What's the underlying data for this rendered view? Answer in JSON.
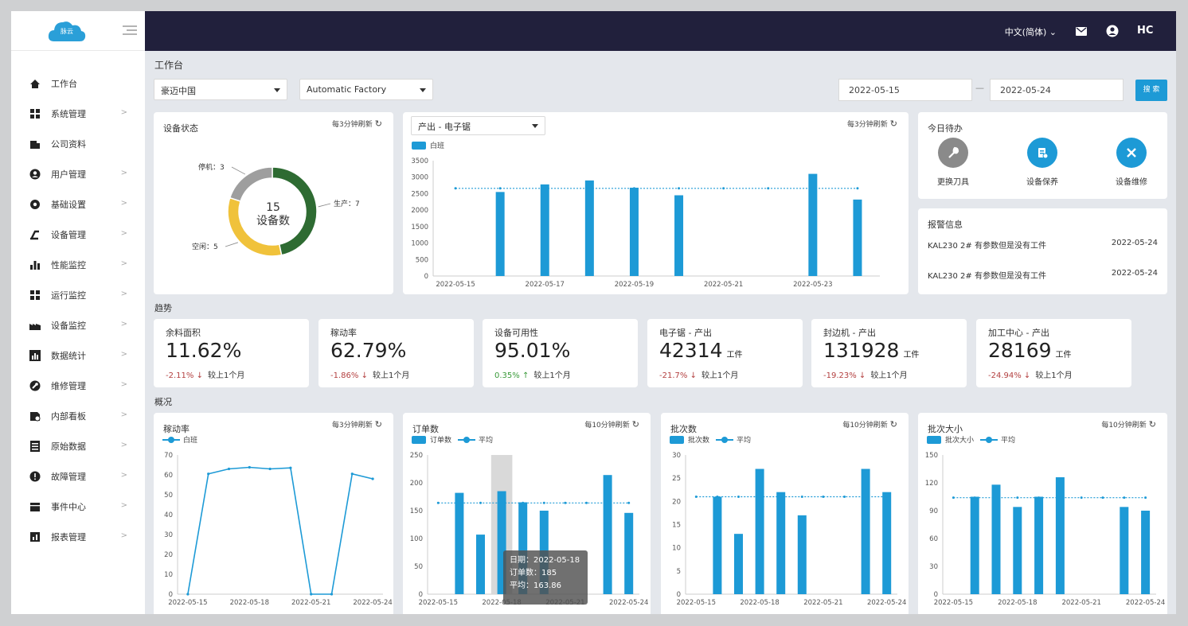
{
  "app": {
    "logo_text": "脉云"
  },
  "colors": {
    "accent": "#1d9ad6",
    "topbar": "#21203c",
    "production": "#2e6b32",
    "idle": "#f0c23b",
    "stopped": "#9e9e9e",
    "down": "#b34040",
    "up": "#3a9a3a"
  },
  "topbar": {
    "language": "中文(简体)",
    "icons": [
      "mail-icon",
      "user-icon",
      "brand-icon"
    ],
    "brand_text": "HC"
  },
  "sidebar": {
    "items": [
      {
        "label": "工作台",
        "icon": "home-icon",
        "has_arrow": false
      },
      {
        "label": "系统管理",
        "icon": "grid-icon",
        "has_arrow": true
      },
      {
        "label": "公司资料",
        "icon": "building-icon",
        "has_arrow": false
      },
      {
        "label": "用户管理",
        "icon": "user-icon",
        "has_arrow": true
      },
      {
        "label": "基础设置",
        "icon": "gear-icon",
        "has_arrow": true
      },
      {
        "label": "设备管理",
        "icon": "machine-icon",
        "has_arrow": true
      },
      {
        "label": "性能监控",
        "icon": "bar-chart-icon",
        "has_arrow": true
      },
      {
        "label": "运行监控",
        "icon": "grid-icon",
        "has_arrow": true
      },
      {
        "label": "设备监控",
        "icon": "factory-icon",
        "has_arrow": true
      },
      {
        "label": "数据统计",
        "icon": "stats-icon",
        "has_arrow": true
      },
      {
        "label": "维修管理",
        "icon": "wrench-icon",
        "has_arrow": true
      },
      {
        "label": "内部看板",
        "icon": "board-icon",
        "has_arrow": true
      },
      {
        "label": "原始数据",
        "icon": "list-icon",
        "has_arrow": true
      },
      {
        "label": "故障管理",
        "icon": "alert-icon",
        "has_arrow": true
      },
      {
        "label": "事件中心",
        "icon": "event-icon",
        "has_arrow": true
      },
      {
        "label": "报表管理",
        "icon": "report-icon",
        "has_arrow": true
      }
    ]
  },
  "page": {
    "title": "工作台",
    "trend_title": "趋势",
    "overview_title": "概况"
  },
  "filters": {
    "company": "豪迈中国",
    "factory": "Automatic Factory",
    "date_from": "2022-05-15",
    "date_sep": "—",
    "date_to": "2022-05-24",
    "search_label": "搜 索"
  },
  "device_status": {
    "title": "设备状态",
    "refresh": "每3分钟刷新",
    "refresh_icon": "↻",
    "center_value": "15",
    "center_label": "设备数",
    "segments": [
      {
        "label": "生产：7",
        "value": 7
      },
      {
        "label": "空闲：5",
        "value": 5
      },
      {
        "label": "停机：3",
        "value": 3
      }
    ]
  },
  "output_card": {
    "selector": "产出 - 电子锯",
    "refresh": "每3分钟刷新",
    "legend": "白班"
  },
  "todo": {
    "title": "今日待办",
    "items": [
      {
        "label": "更换刀具",
        "icon": "wrench-icon"
      },
      {
        "label": "设备保养",
        "icon": "maintenance-icon"
      },
      {
        "label": "设备维修",
        "icon": "tools-icon"
      }
    ]
  },
  "alarms": {
    "title": "报警信息",
    "items": [
      {
        "text": "KAL230 2# 有参数但是没有工件",
        "date": "2022-05-24"
      },
      {
        "text": "KAL230 2# 有参数但是没有工件",
        "date": "2022-05-24"
      }
    ]
  },
  "kpis": [
    {
      "title": "余料面积",
      "value": "11.62%",
      "unit": "",
      "delta": "-2.11%",
      "dir": "down",
      "compare": "较上1个月"
    },
    {
      "title": "稼动率",
      "value": "62.79%",
      "unit": "",
      "delta": "-1.86%",
      "dir": "down",
      "compare": "较上1个月"
    },
    {
      "title": "设备可用性",
      "value": "95.01%",
      "unit": "",
      "delta": "0.35%",
      "dir": "up",
      "compare": "较上1个月"
    },
    {
      "title": "电子锯 - 产出",
      "value": "42314",
      "unit": "工件",
      "delta": "-21.7%",
      "dir": "down",
      "compare": "较上1个月"
    },
    {
      "title": "封边机 - 产出",
      "value": "131928",
      "unit": "工件",
      "delta": "-19.23%",
      "dir": "down",
      "compare": "较上1个月"
    },
    {
      "title": "加工中心 - 产出",
      "value": "28169",
      "unit": "工件",
      "delta": "-24.94%",
      "dir": "down",
      "compare": "较上1个月"
    }
  ],
  "overview": {
    "util": {
      "title": "稼动率",
      "refresh": "每3分钟刷新",
      "legend": "白班"
    },
    "orders": {
      "title": "订单数",
      "refresh": "每10分钟刷新",
      "legend_bar": "订单数",
      "legend_avg": "平均"
    },
    "batches": {
      "title": "批次数",
      "refresh": "每10分钟刷新",
      "legend_bar": "批次数",
      "legend_avg": "平均"
    },
    "batch_size": {
      "title": "批次大小",
      "refresh": "每10分钟刷新",
      "legend_bar": "批次大小",
      "legend_avg": "平均"
    }
  },
  "tooltip": {
    "line1": "日期：2022-05-18",
    "line2": "订单数：185",
    "line3": "平均：163.86"
  },
  "chart_data": [
    {
      "type": "pie",
      "title": "设备状态",
      "categories": [
        "生产",
        "空闲",
        "停机"
      ],
      "values": [
        7,
        5,
        3
      ]
    },
    {
      "type": "bar",
      "x": [
        "2022-05-15",
        "2022-05-16",
        "2022-05-17",
        "2022-05-18",
        "2022-05-19",
        "2022-05-20",
        "2022-05-21",
        "2022-05-22",
        "2022-05-23",
        "2022-05-24"
      ],
      "x_ticks": [
        "2022-05-15",
        "2022-05-17",
        "2022-05-19",
        "2022-05-21",
        "2022-05-23"
      ],
      "series": [
        {
          "name": "白班",
          "values": [
            0,
            2550,
            2780,
            2900,
            2680,
            2450,
            0,
            0,
            3100,
            2320
          ]
        }
      ],
      "average": 2660,
      "ylim": [
        0,
        3500
      ],
      "yticks": [
        0,
        500,
        1000,
        1500,
        2000,
        2500,
        3000,
        3500
      ]
    },
    {
      "type": "line",
      "title": "稼动率",
      "x": [
        "2022-05-15",
        "2022-05-16",
        "2022-05-17",
        "2022-05-18",
        "2022-05-19",
        "2022-05-20",
        "2022-05-21",
        "2022-05-22",
        "2022-05-23",
        "2022-05-24"
      ],
      "x_ticks": [
        "2022-05-15",
        "2022-05-18",
        "2022-05-21",
        "2022-05-24"
      ],
      "series": [
        {
          "name": "白班",
          "values": [
            0,
            60.5,
            63,
            63.8,
            63,
            63.5,
            0,
            0,
            60.5,
            58
          ]
        }
      ],
      "ylim": [
        0,
        70
      ],
      "yticks": [
        0,
        10,
        20,
        30,
        40,
        50,
        60,
        70
      ]
    },
    {
      "type": "bar",
      "title": "订单数",
      "x": [
        "2022-05-15",
        "2022-05-16",
        "2022-05-17",
        "2022-05-18",
        "2022-05-19",
        "2022-05-20",
        "2022-05-21",
        "2022-05-22",
        "2022-05-23",
        "2022-05-24"
      ],
      "x_ticks": [
        "2022-05-15",
        "2022-05-18",
        "2022-05-21",
        "2022-05-24"
      ],
      "series": [
        {
          "name": "订单数",
          "values": [
            0,
            182,
            107,
            185,
            165,
            150,
            0,
            0,
            214,
            146
          ]
        }
      ],
      "average": 163.86,
      "ylim": [
        0,
        250
      ],
      "yticks": [
        0,
        50,
        100,
        150,
        200,
        250
      ],
      "highlight_index": 3
    },
    {
      "type": "bar",
      "title": "批次数",
      "x": [
        "2022-05-15",
        "2022-05-16",
        "2022-05-17",
        "2022-05-18",
        "2022-05-19",
        "2022-05-20",
        "2022-05-21",
        "2022-05-22",
        "2022-05-23",
        "2022-05-24"
      ],
      "x_ticks": [
        "2022-05-15",
        "2022-05-18",
        "2022-05-21",
        "2022-05-24"
      ],
      "series": [
        {
          "name": "批次数",
          "values": [
            0,
            21,
            13,
            27,
            22,
            17,
            0,
            0,
            27,
            22
          ]
        }
      ],
      "average": 21,
      "ylim": [
        0,
        30
      ],
      "yticks": [
        0,
        5,
        10,
        15,
        20,
        25,
        30
      ]
    },
    {
      "type": "bar",
      "title": "批次大小",
      "x": [
        "2022-05-15",
        "2022-05-16",
        "2022-05-17",
        "2022-05-18",
        "2022-05-19",
        "2022-05-20",
        "2022-05-21",
        "2022-05-22",
        "2022-05-23",
        "2022-05-24"
      ],
      "x_ticks": [
        "2022-05-15",
        "2022-05-18",
        "2022-05-21",
        "2022-05-24"
      ],
      "series": [
        {
          "name": "批次大小",
          "values": [
            0,
            105,
            118,
            94,
            105,
            126,
            0,
            0,
            94,
            90
          ]
        }
      ],
      "average": 104,
      "ylim": [
        0,
        150
      ],
      "yticks": [
        0,
        30,
        60,
        90,
        120,
        150
      ]
    }
  ]
}
